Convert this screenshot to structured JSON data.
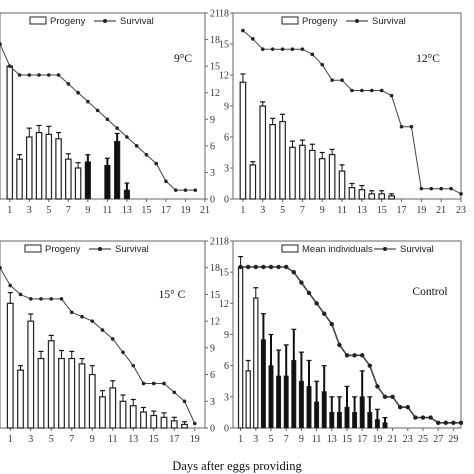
{
  "figure": {
    "xlabel": "Days after eggs providing"
  },
  "chart_data": [
    {
      "type": "bar",
      "panel_label": "9°C",
      "legend": {
        "bar": "Progeny",
        "line": "Survival",
        "placement": "top"
      },
      "x_ticks": [
        "1",
        "3",
        "5",
        "7",
        "9",
        "11",
        "13",
        "15",
        "17",
        "19",
        "21"
      ],
      "xlim": [
        0,
        21
      ],
      "y_right_ticks": [
        "0",
        "3",
        "6",
        "9",
        "12",
        "15",
        "18",
        "21"
      ],
      "ylim_left": [
        0,
        21
      ],
      "ylim_right": [
        0,
        21
      ],
      "bars": {
        "x": [
          1,
          2,
          3,
          4,
          5,
          6,
          7,
          8,
          9,
          10,
          11,
          12,
          13
        ],
        "values": [
          15,
          4.5,
          7,
          7.5,
          7.3,
          6.8,
          4.5,
          3.5,
          4.2,
          0,
          3.8,
          6.5,
          1
        ],
        "errors": [
          0,
          0.5,
          1,
          0.8,
          0.9,
          0.7,
          0.6,
          0.6,
          0.8,
          0,
          0.8,
          0.9,
          0.8
        ],
        "hollow": [
          true,
          true,
          true,
          true,
          true,
          true,
          true,
          true,
          false,
          false,
          false,
          false,
          false
        ]
      },
      "survival": {
        "x": [
          0,
          1,
          2,
          3,
          4,
          5,
          6,
          7,
          8,
          9,
          10,
          11,
          12,
          13,
          14,
          15,
          16,
          17,
          18,
          19,
          20
        ],
        "y": [
          17.5,
          15,
          14,
          14,
          14,
          14,
          14,
          13,
          12,
          11,
          10,
          9,
          8,
          7,
          6,
          5,
          4,
          2,
          1,
          1,
          1
        ]
      }
    },
    {
      "type": "bar",
      "panel_label": "12°C",
      "legend": {
        "bar": "Progeny",
        "line": "Survival",
        "placement": "top"
      },
      "x_ticks": [
        "1",
        "3",
        "5",
        "7",
        "9",
        "11",
        "13",
        "15",
        "17",
        "19",
        "21",
        "23"
      ],
      "xlim": [
        0,
        23
      ],
      "y_left_ticks": [
        "0",
        "3",
        "6",
        "9",
        "12",
        "15",
        "18"
      ],
      "ylim_left": [
        0,
        18
      ],
      "ylim_right": [
        0,
        18
      ],
      "bars": {
        "x": [
          1,
          2,
          3,
          4,
          5,
          6,
          7,
          8,
          9,
          10,
          11,
          12,
          13,
          14,
          15,
          16
        ],
        "values": [
          11.3,
          3.3,
          9,
          7.2,
          7.5,
          5,
          5.2,
          4.7,
          3.9,
          4.3,
          2.7,
          1.1,
          0.9,
          0.5,
          0.5,
          0.3
        ],
        "errors": [
          0.8,
          0.3,
          0.4,
          0.6,
          0.7,
          0.6,
          0.5,
          0.6,
          0.6,
          0.5,
          0.6,
          0.4,
          0.4,
          0.3,
          0.3,
          0.2
        ],
        "hollow": [
          true,
          true,
          true,
          true,
          true,
          true,
          true,
          true,
          true,
          true,
          true,
          true,
          true,
          true,
          true,
          true
        ]
      },
      "survival": {
        "x": [
          1,
          2,
          3,
          4,
          5,
          6,
          7,
          8,
          9,
          10,
          11,
          12,
          13,
          14,
          15,
          16,
          17,
          18,
          19,
          20,
          21,
          22,
          23
        ],
        "y": [
          16.3,
          15.5,
          14.5,
          14.5,
          14.5,
          14.5,
          14.5,
          14,
          13,
          11.5,
          11.5,
          10.5,
          10.5,
          10.5,
          10.5,
          10,
          7,
          7,
          1,
          1,
          1,
          1,
          0.5
        ]
      }
    },
    {
      "type": "bar",
      "panel_label": "15° C",
      "legend": {
        "bar": "Progeny",
        "line": "Survival",
        "placement": "top"
      },
      "x_ticks": [
        "1",
        "3",
        "5",
        "7",
        "9",
        "11",
        "13",
        "15",
        "17",
        "19"
      ],
      "xlim": [
        0,
        20
      ],
      "y_right_ticks": [
        "0",
        "3",
        "6",
        "9",
        "12",
        "15",
        "18",
        "21"
      ],
      "ylim_left": [
        0,
        21
      ],
      "ylim_right": [
        0,
        21
      ],
      "bars": {
        "x": [
          1,
          2,
          3,
          4,
          5,
          6,
          7,
          8,
          9,
          10,
          11,
          12,
          13,
          14,
          15,
          16,
          17,
          18
        ],
        "values": [
          14,
          6.5,
          12,
          7.8,
          9.8,
          7.8,
          7.8,
          7.2,
          6,
          3.5,
          4.5,
          3,
          2.5,
          1.8,
          1.4,
          1.2,
          0.8,
          0.4
        ],
        "errors": [
          1.2,
          0.5,
          0.8,
          0.8,
          0.6,
          0.9,
          0.8,
          0.6,
          1,
          0.7,
          0.8,
          0.7,
          0.7,
          0.5,
          0.5,
          0.5,
          0.4,
          0.3
        ],
        "hollow": [
          true,
          true,
          true,
          true,
          true,
          true,
          true,
          true,
          true,
          true,
          true,
          true,
          true,
          true,
          true,
          true,
          true,
          true
        ]
      },
      "survival": {
        "x": [
          0,
          1,
          2,
          3,
          4,
          5,
          6,
          7,
          8,
          9,
          10,
          11,
          12,
          13,
          14,
          15,
          16,
          17,
          18,
          19
        ],
        "y": [
          18,
          16,
          15,
          14.5,
          14.5,
          14.5,
          14.5,
          13,
          12.5,
          12,
          11,
          10,
          8.5,
          7,
          5,
          5,
          5,
          4,
          3,
          0.5
        ]
      }
    },
    {
      "type": "bar",
      "panel_label": "Control",
      "legend": {
        "bar": "Mean individuals",
        "line": "Survival",
        "placement": "top"
      },
      "x_ticks": [
        "1",
        "3",
        "5",
        "7",
        "9",
        "11",
        "13",
        "15",
        "17",
        "19",
        "21",
        "23",
        "25",
        "27",
        "29"
      ],
      "xlim": [
        0,
        30
      ],
      "y_left_ticks": [
        "0",
        "3",
        "6",
        "9",
        "12",
        "15",
        "18"
      ],
      "ylim_left": [
        0,
        18
      ],
      "ylim_right": [
        0,
        18
      ],
      "bars": {
        "x": [
          1,
          2,
          3,
          4,
          5,
          6,
          7,
          8,
          9,
          10,
          11,
          12,
          13,
          14,
          15,
          16,
          17,
          18,
          19,
          20
        ],
        "values": [
          15.5,
          5.5,
          12.5,
          8.5,
          6,
          5,
          5,
          6.5,
          4.5,
          4,
          2.5,
          3.5,
          1.5,
          1.5,
          2,
          1.5,
          3,
          1.5,
          0.8,
          0.5
        ],
        "errors": [
          1,
          1,
          1,
          2.5,
          3,
          2.5,
          3,
          3,
          2.8,
          2.5,
          2,
          2.5,
          1.5,
          1.5,
          2,
          1.5,
          2.5,
          1.5,
          1,
          0.5
        ],
        "hollow": [
          true,
          true,
          true,
          false,
          false,
          false,
          false,
          false,
          false,
          false,
          false,
          false,
          false,
          false,
          false,
          false,
          false,
          false,
          false,
          false
        ]
      },
      "survival": {
        "x": [
          1,
          2,
          3,
          4,
          5,
          6,
          7,
          8,
          9,
          10,
          11,
          12,
          13,
          14,
          15,
          16,
          17,
          18,
          19,
          20,
          21,
          22,
          23,
          24,
          25,
          26,
          27,
          28,
          29,
          30
        ],
        "y": [
          15.5,
          15.5,
          15.5,
          15.5,
          15.5,
          15.5,
          15.5,
          15,
          14,
          13,
          12,
          11,
          10,
          8,
          7,
          7,
          7,
          6,
          4,
          3,
          3,
          2,
          2,
          1,
          1,
          1,
          0.5,
          0.5,
          0.5,
          0.5
        ]
      }
    }
  ]
}
